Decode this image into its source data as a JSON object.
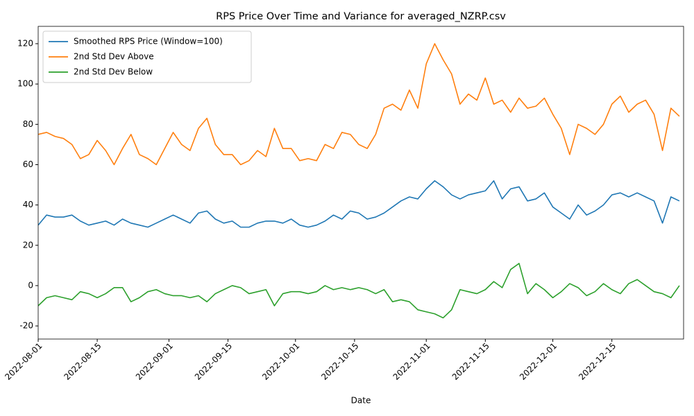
{
  "chart_data": {
    "type": "line",
    "title": "RPS Price Over Time and Variance for averaged_NZRP.csv",
    "x_label": "Date",
    "x": [
      "2022-08-01",
      "2022-08-03",
      "2022-08-05",
      "2022-08-07",
      "2022-08-09",
      "2022-08-11",
      "2022-08-13",
      "2022-08-15",
      "2022-08-17",
      "2022-08-19",
      "2022-08-21",
      "2022-08-23",
      "2022-08-25",
      "2022-08-27",
      "2022-08-29",
      "2022-08-31",
      "2022-09-02",
      "2022-09-04",
      "2022-09-06",
      "2022-09-08",
      "2022-09-10",
      "2022-09-12",
      "2022-09-14",
      "2022-09-16",
      "2022-09-18",
      "2022-09-20",
      "2022-09-22",
      "2022-09-24",
      "2022-09-26",
      "2022-09-28",
      "2022-09-30",
      "2022-10-02",
      "2022-10-04",
      "2022-10-06",
      "2022-10-08",
      "2022-10-10",
      "2022-10-12",
      "2022-10-14",
      "2022-10-16",
      "2022-10-18",
      "2022-10-20",
      "2022-10-22",
      "2022-10-24",
      "2022-10-26",
      "2022-10-28",
      "2022-10-30",
      "2022-11-01",
      "2022-11-03",
      "2022-11-05",
      "2022-11-07",
      "2022-11-09",
      "2022-11-11",
      "2022-11-13",
      "2022-11-15",
      "2022-11-17",
      "2022-11-19",
      "2022-11-21",
      "2022-11-23",
      "2022-11-25",
      "2022-11-27",
      "2022-11-29",
      "2022-12-01",
      "2022-12-03",
      "2022-12-05",
      "2022-12-07",
      "2022-12-09",
      "2022-12-11",
      "2022-12-13",
      "2022-12-15",
      "2022-12-17",
      "2022-12-19",
      "2022-12-21",
      "2022-12-23",
      "2022-12-25",
      "2022-12-27",
      "2022-12-29",
      "2022-12-31"
    ],
    "series": [
      {
        "name": "Smoothed RPS Price (Window=100)",
        "color": "#1f77b4",
        "values": [
          30,
          35,
          34,
          34,
          35,
          32,
          30,
          31,
          32,
          30,
          33,
          31,
          30,
          29,
          31,
          33,
          35,
          33,
          31,
          36,
          37,
          33,
          31,
          32,
          29,
          29,
          31,
          32,
          32,
          31,
          33,
          30,
          29,
          30,
          32,
          35,
          33,
          37,
          36,
          33,
          34,
          36,
          39,
          42,
          44,
          43,
          48,
          52,
          49,
          45,
          43,
          45,
          46,
          47,
          52,
          43,
          48,
          49,
          42,
          43,
          46,
          39,
          36,
          33,
          40,
          35,
          37,
          40,
          45,
          46,
          44,
          46,
          44,
          42,
          31,
          44,
          42
        ]
      },
      {
        "name": "2nd Std Dev Above",
        "color": "#ff7f0e",
        "values": [
          75,
          76,
          74,
          73,
          70,
          63,
          65,
          72,
          67,
          60,
          68,
          75,
          65,
          63,
          60,
          68,
          76,
          70,
          67,
          78,
          83,
          70,
          65,
          65,
          60,
          62,
          67,
          64,
          78,
          68,
          68,
          62,
          63,
          62,
          70,
          68,
          76,
          75,
          70,
          68,
          75,
          88,
          90,
          87,
          97,
          88,
          110,
          120,
          112,
          105,
          90,
          95,
          92,
          103,
          90,
          92,
          86,
          93,
          88,
          89,
          93,
          85,
          78,
          65,
          80,
          78,
          75,
          80,
          90,
          94,
          86,
          90,
          92,
          85,
          67,
          88,
          84
        ]
      },
      {
        "name": "2nd Std Dev Below",
        "color": "#2ca02c",
        "values": [
          -10,
          -6,
          -5,
          -6,
          -7,
          -3,
          -4,
          -6,
          -4,
          -1,
          -1,
          -8,
          -6,
          -3,
          -2,
          -4,
          -5,
          -5,
          -6,
          -5,
          -8,
          -4,
          -2,
          0,
          -1,
          -4,
          -3,
          -2,
          -10,
          -4,
          -3,
          -3,
          -4,
          -3,
          0,
          -2,
          -1,
          -2,
          -1,
          -2,
          -4,
          -2,
          -8,
          -7,
          -8,
          -12,
          -13,
          -14,
          -16,
          -12,
          -2,
          -3,
          -4,
          -2,
          2,
          -1,
          8,
          11,
          -4,
          1,
          -2,
          -6,
          -3,
          1,
          -1,
          -5,
          -3,
          1,
          -2,
          -4,
          1,
          3,
          0,
          -3,
          -4,
          -6,
          0
        ]
      }
    ],
    "xlim": [
      "2022-08-01",
      "2023-01-01"
    ],
    "xticks": [
      "2022-08-01",
      "2022-08-15",
      "2022-09-01",
      "2022-09-15",
      "2022-10-01",
      "2022-10-15",
      "2022-11-01",
      "2022-11-15",
      "2022-12-01",
      "2022-12-15"
    ],
    "ylim": [
      -26.5,
      128.6
    ],
    "yticks": [
      -20,
      0,
      20,
      40,
      60,
      80,
      100,
      120
    ],
    "grid": false,
    "legend": "upper-left"
  }
}
